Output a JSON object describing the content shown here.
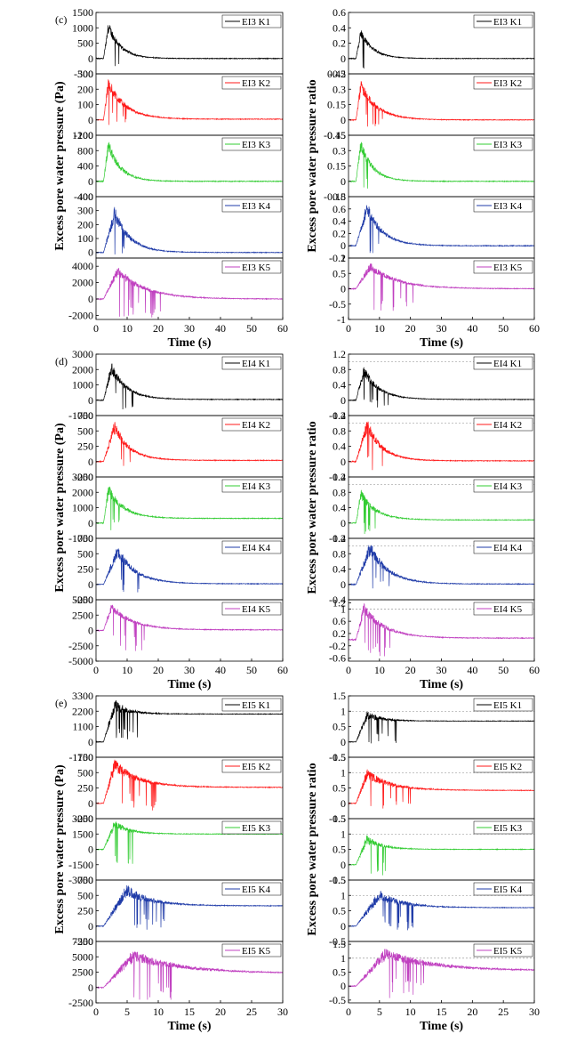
{
  "figure": {
    "groups": [
      {
        "label": "(c)",
        "xlabel": "Time (s)",
        "xticks": [
          0,
          10,
          20,
          30,
          40,
          50,
          60
        ],
        "xlim": [
          0,
          60
        ],
        "left_ylabel": "Excess pore water pressure (Pa)",
        "right_ylabel": "Excess pore water pressure ratio",
        "left": [
          {
            "legend": "EI3 K1",
            "color": "#000000",
            "ylim": [
              -500,
              1500
            ],
            "yticks": [
              -500,
              0,
              500,
              1000,
              1500
            ],
            "peak": 1050,
            "floor": -450,
            "peak_t": 4,
            "decay": 4.0,
            "end_value": 0,
            "burst_end": 8,
            "dashed": null
          },
          {
            "legend": "EI3 K2",
            "color": "#ff1a1a",
            "ylim": [
              -100,
              300
            ],
            "yticks": [
              -100,
              0,
              100,
              200,
              300
            ],
            "peak": 240,
            "floor": -50,
            "peak_t": 4,
            "decay": 5.5,
            "end_value": 5,
            "burst_end": 11,
            "dashed": null
          },
          {
            "legend": "EI3 K3",
            "color": "#33cc33",
            "ylim": [
              -400,
              1200
            ],
            "yticks": [
              -400,
              0,
              400,
              800,
              1200
            ],
            "peak": 950,
            "floor": -350,
            "peak_t": 4,
            "decay": 4.0,
            "end_value": 0,
            "burst_end": 7,
            "dashed": null
          },
          {
            "legend": "EI3 K4",
            "color": "#1f3ba8",
            "ylim": [
              -40,
              400
            ],
            "yticks": [
              0,
              100,
              200,
              300,
              400
            ],
            "peak": 280,
            "floor": -20,
            "peak_t": 6,
            "decay": 5.0,
            "end_value": 0,
            "burst_end": 10,
            "dashed": null
          },
          {
            "legend": "EI3 K5",
            "color": "#c040c0",
            "ylim": [
              -2500,
              5000
            ],
            "yticks": [
              -2000,
              0,
              2000,
              4000
            ],
            "peak": 3400,
            "floor": -2300,
            "peak_t": 7,
            "decay": 9.0,
            "end_value": 0,
            "burst_end": 21,
            "dashed": null
          }
        ],
        "right": [
          {
            "legend": "EI3 K1",
            "color": "#000000",
            "ylim": [
              -0.2,
              0.6
            ],
            "yticks": [
              -0.2,
              0.0,
              0.2,
              0.4,
              0.6
            ],
            "peak": 0.34,
            "floor": -0.15,
            "peak_t": 4,
            "decay": 4.0,
            "end_value": 0,
            "burst_end": 8,
            "dashed": null
          },
          {
            "legend": "EI3 K2",
            "color": "#ff1a1a",
            "ylim": [
              -0.15,
              0.45
            ],
            "yticks": [
              -0.15,
              0.0,
              0.15,
              0.3,
              0.45
            ],
            "peak": 0.33,
            "floor": -0.08,
            "peak_t": 4,
            "decay": 5.5,
            "end_value": 0.0,
            "burst_end": 11,
            "dashed": null
          },
          {
            "legend": "EI3 K3",
            "color": "#33cc33",
            "ylim": [
              -0.15,
              0.45
            ],
            "yticks": [
              -0.15,
              0.0,
              0.15,
              0.3,
              0.45
            ],
            "peak": 0.36,
            "floor": -0.1,
            "peak_t": 4,
            "decay": 4.0,
            "end_value": 0,
            "burst_end": 7,
            "dashed": null
          },
          {
            "legend": "EI3 K4",
            "color": "#1f3ba8",
            "ylim": [
              -0.2,
              0.8
            ],
            "yticks": [
              -0.2,
              0.0,
              0.2,
              0.4,
              0.6,
              0.8
            ],
            "peak": 0.62,
            "floor": -0.15,
            "peak_t": 6,
            "decay": 5.0,
            "end_value": 0,
            "burst_end": 10,
            "dashed": null
          },
          {
            "legend": "EI3 K5",
            "color": "#c040c0",
            "ylim": [
              -1.0,
              1.0
            ],
            "yticks": [
              -1.0,
              -0.5,
              0,
              0.5,
              1.0
            ],
            "peak": 0.72,
            "floor": -0.75,
            "peak_t": 7,
            "decay": 9.0,
            "end_value": 0,
            "burst_end": 21,
            "dashed": null
          }
        ]
      },
      {
        "label": "(d)",
        "xlabel": "Time (s)",
        "xticks": [
          0,
          10,
          20,
          30,
          40,
          50,
          60
        ],
        "xlim": [
          0,
          60
        ],
        "left_ylabel": "Excess pore water pressure (Pa)",
        "right_ylabel": "Excess pore water pressure ratio",
        "left": [
          {
            "legend": "EI4 K1",
            "color": "#000000",
            "ylim": [
              -1000,
              3000
            ],
            "yticks": [
              -1000,
              0,
              1000,
              2000,
              3000
            ],
            "peak": 2100,
            "floor": -600,
            "peak_t": 5,
            "decay": 5.0,
            "end_value": 50,
            "burst_end": 13,
            "dashed": null
          },
          {
            "legend": "EI4 K2",
            "color": "#ff1a1a",
            "ylim": [
              -250,
              750
            ],
            "yticks": [
              -250,
              0,
              250,
              500,
              750
            ],
            "peak": 560,
            "floor": -150,
            "peak_t": 6,
            "decay": 5.0,
            "end_value": 20,
            "burst_end": 12,
            "dashed": null
          },
          {
            "legend": "EI4 K3",
            "color": "#33cc33",
            "ylim": [
              -1000,
              3000
            ],
            "yticks": [
              -1000,
              0,
              1000,
              2000,
              3000
            ],
            "peak": 2200,
            "floor": -800,
            "peak_t": 4,
            "decay": 5.0,
            "end_value": 300,
            "burst_end": 10,
            "dashed": null
          },
          {
            "legend": "EI4 K4",
            "color": "#1f3ba8",
            "ylim": [
              -250,
              750
            ],
            "yticks": [
              -250,
              0,
              250,
              500,
              750
            ],
            "peak": 540,
            "floor": -150,
            "peak_t": 7,
            "decay": 6.0,
            "end_value": 10,
            "burst_end": 14,
            "dashed": null
          },
          {
            "legend": "EI4 K5",
            "color": "#c040c0",
            "ylim": [
              -5000,
              5000
            ],
            "yticks": [
              -5000,
              -2500,
              0,
              2500,
              5000
            ],
            "peak": 3800,
            "floor": -3500,
            "peak_t": 5,
            "decay": 7.0,
            "end_value": 100,
            "burst_end": 16,
            "dashed": null
          }
        ],
        "right": [
          {
            "legend": "EI4 K1",
            "color": "#000000",
            "ylim": [
              -0.4,
              1.2
            ],
            "yticks": [
              -0.4,
              0.0,
              0.4,
              0.8,
              1.2
            ],
            "peak": 0.78,
            "floor": -0.25,
            "peak_t": 5,
            "decay": 5.0,
            "end_value": 0.02,
            "burst_end": 13,
            "dashed": 1.0
          },
          {
            "legend": "EI4 K2",
            "color": "#ff1a1a",
            "ylim": [
              -0.4,
              1.2
            ],
            "yticks": [
              -0.4,
              0.0,
              0.4,
              0.8,
              1.2
            ],
            "peak": 0.95,
            "floor": -0.25,
            "peak_t": 6,
            "decay": 5.0,
            "end_value": 0.02,
            "burst_end": 12,
            "dashed": 1.0
          },
          {
            "legend": "EI4 K3",
            "color": "#33cc33",
            "ylim": [
              -0.4,
              1.2
            ],
            "yticks": [
              -0.4,
              0.0,
              0.4,
              0.8,
              1.2
            ],
            "peak": 0.75,
            "floor": -0.3,
            "peak_t": 4,
            "decay": 5.0,
            "end_value": 0.08,
            "burst_end": 10,
            "dashed": 1.0
          },
          {
            "legend": "EI4 K4",
            "color": "#1f3ba8",
            "ylim": [
              -0.4,
              1.2
            ],
            "yticks": [
              -0.4,
              0.0,
              0.4,
              0.8,
              1.2
            ],
            "peak": 0.95,
            "floor": -0.25,
            "peak_t": 7,
            "decay": 6.0,
            "end_value": 0.01,
            "burst_end": 14,
            "dashed": 1.0
          },
          {
            "legend": "EI4 K5",
            "color": "#c040c0",
            "ylim": [
              -0.7,
              1.3
            ],
            "yticks": [
              -0.6,
              -0.2,
              0.2,
              0.6,
              1.0,
              1.2
            ],
            "peak": 1.0,
            "floor": -0.55,
            "peak_t": 5,
            "decay": 7.0,
            "end_value": 0.05,
            "burst_end": 16,
            "dashed": 1.0
          }
        ]
      },
      {
        "label": "(e)",
        "xlabel": "Time (s)",
        "xticks": [
          0,
          5,
          10,
          15,
          20,
          25,
          30
        ],
        "xlim": [
          0,
          30
        ],
        "left_ylabel": "Excess pore water pressure (Pa)",
        "right_ylabel": "Excess pore water pressure ratio",
        "left": [
          {
            "legend": "EI5 K1",
            "color": "#000000",
            "ylim": [
              -1100,
              3300
            ],
            "yticks": [
              -1100,
              0,
              1100,
              2200,
              3300
            ],
            "peak": 2600,
            "floor": -200,
            "peak_t": 3,
            "decay": 2.5,
            "end_value": 2000,
            "burst_end": 8,
            "dashed": null
          },
          {
            "legend": "EI5 K2",
            "color": "#ff1a1a",
            "ylim": [
              -250,
              750
            ],
            "yticks": [
              -250,
              0,
              250,
              500,
              750
            ],
            "peak": 620,
            "floor": -120,
            "peak_t": 3,
            "decay": 4.0,
            "end_value": 260,
            "burst_end": 10,
            "dashed": null
          },
          {
            "legend": "EI5 K3",
            "color": "#33cc33",
            "ylim": [
              -3000,
              3000
            ],
            "yticks": [
              -3000,
              -1500,
              0,
              1500,
              3000
            ],
            "peak": 2500,
            "floor": -1500,
            "peak_t": 3,
            "decay": 2.5,
            "end_value": 1500,
            "burst_end": 6,
            "dashed": null
          },
          {
            "legend": "EI5 K4",
            "color": "#1f3ba8",
            "ylim": [
              -250,
              750
            ],
            "yticks": [
              -250,
              0,
              250,
              500,
              750
            ],
            "peak": 580,
            "floor": -80,
            "peak_t": 5,
            "decay": 4.0,
            "end_value": 330,
            "burst_end": 11,
            "dashed": null
          },
          {
            "legend": "EI5 K5",
            "color": "#c040c0",
            "ylim": [
              -2500,
              7500
            ],
            "yticks": [
              -2500,
              0,
              2500,
              5000,
              7500
            ],
            "peak": 5200,
            "floor": -2300,
            "peak_t": 6,
            "decay": 8.0,
            "end_value": 2300,
            "burst_end": 13,
            "dashed": null
          }
        ],
        "right": [
          {
            "legend": "EI5 K1",
            "color": "#000000",
            "ylim": [
              -0.5,
              1.5
            ],
            "yticks": [
              -0.5,
              0.0,
              0.5,
              1.0,
              1.5
            ],
            "peak": 0.88,
            "floor": -0.1,
            "peak_t": 3,
            "decay": 2.5,
            "end_value": 0.68,
            "burst_end": 8,
            "dashed": 1.0
          },
          {
            "legend": "EI5 K2",
            "color": "#ff1a1a",
            "ylim": [
              -0.5,
              1.5
            ],
            "yticks": [
              -0.5,
              0.0,
              0.5,
              1.0,
              1.5
            ],
            "peak": 0.95,
            "floor": -0.2,
            "peak_t": 3,
            "decay": 4.0,
            "end_value": 0.42,
            "burst_end": 10,
            "dashed": 1.0
          },
          {
            "legend": "EI5 K3",
            "color": "#33cc33",
            "ylim": [
              -0.5,
              1.5
            ],
            "yticks": [
              -0.5,
              0.0,
              0.5,
              1.0,
              1.5
            ],
            "peak": 0.82,
            "floor": -0.35,
            "peak_t": 3,
            "decay": 2.5,
            "end_value": 0.5,
            "burst_end": 6,
            "dashed": 1.0
          },
          {
            "legend": "EI5 K4",
            "color": "#1f3ba8",
            "ylim": [
              -0.5,
              1.5
            ],
            "yticks": [
              -0.5,
              0.0,
              0.5,
              1.0,
              1.5
            ],
            "peak": 1.0,
            "floor": -0.15,
            "peak_t": 5,
            "decay": 4.0,
            "end_value": 0.6,
            "burst_end": 11,
            "dashed": 1.0
          },
          {
            "legend": "EI5 K5",
            "color": "#c040c0",
            "ylim": [
              -0.6,
              1.6
            ],
            "yticks": [
              -0.5,
              0.0,
              0.5,
              1.0,
              1.5
            ],
            "peak": 1.15,
            "floor": -0.5,
            "peak_t": 6,
            "decay": 8.0,
            "end_value": 0.55,
            "burst_end": 13,
            "dashed": 1.0
          }
        ]
      }
    ]
  },
  "chart_data": {
    "type": "line",
    "description_series": "Time histories of excess pore water pressure (Pa) and excess pore water pressure ratio at sensors K1-K5 for tests EI3, EI4, EI5; each curve rises to a fluctuating peak shortly after shaking onset then decays toward a residual value (values approximated from the figure).",
    "title": "",
    "xlabel": "Time (s)",
    "ylabels": [
      "Excess pore water pressure (Pa)",
      "Excess pore water pressure ratio"
    ],
    "panels": [
      "(c)",
      "(d)",
      "(e)"
    ]
  }
}
